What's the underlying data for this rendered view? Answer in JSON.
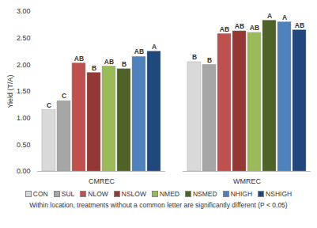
{
  "chart_data": {
    "type": "bar",
    "y_label": "Yield (T/A)",
    "categories": [
      "CMREC",
      "WMREC"
    ],
    "series": [
      {
        "name": "CON",
        "color": "#d9d9d9",
        "values": [
          1.15,
          2.05
        ],
        "letters": [
          "C",
          "B"
        ]
      },
      {
        "name": "SUL",
        "color": "#a6a6a6",
        "values": [
          1.32,
          2.0
        ],
        "letters": [
          "C",
          "B"
        ]
      },
      {
        "name": "NLOW",
        "color": "#c0504d",
        "values": [
          2.03,
          2.58
        ],
        "letters": [
          "AB",
          "AB"
        ]
      },
      {
        "name": "NSLOW",
        "color": "#953735",
        "values": [
          1.85,
          2.63
        ],
        "letters": [
          "B",
          "AB"
        ]
      },
      {
        "name": "NMED",
        "color": "#9bbb59",
        "values": [
          1.97,
          2.6
        ],
        "letters": [
          "AB",
          "AB"
        ]
      },
      {
        "name": "NSMED",
        "color": "#4f6228",
        "values": [
          1.92,
          2.83
        ],
        "letters": [
          "B",
          "A"
        ]
      },
      {
        "name": "NHIGH",
        "color": "#4f81bd",
        "values": [
          2.15,
          2.8
        ],
        "letters": [
          "AB",
          "A"
        ]
      },
      {
        "name": "NSHIGH",
        "color": "#1f497d",
        "values": [
          2.25,
          2.65
        ],
        "letters": [
          "A",
          "AB"
        ]
      }
    ],
    "ylim": [
      0,
      3
    ],
    "yticks": [
      {
        "value": 0,
        "label": "0.00"
      },
      {
        "value": 0.5,
        "label": "0.50"
      },
      {
        "value": 1,
        "label": "1.00"
      },
      {
        "value": 1.5,
        "label": "1.50"
      },
      {
        "value": 2,
        "label": "2.00"
      },
      {
        "value": 2.5,
        "label": "2.50"
      },
      {
        "value": 3,
        "label": "3.00"
      }
    ],
    "grid": false,
    "legend": "bottom",
    "caption": "Within location, treatments without a common letter are significantly different (P < 0.05)"
  }
}
